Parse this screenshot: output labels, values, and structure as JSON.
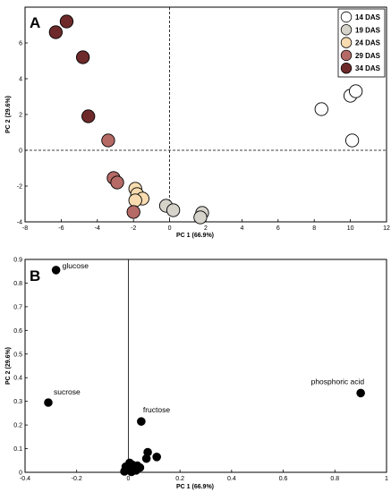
{
  "chart_data": [
    {
      "type": "scatter",
      "panel_label": "A",
      "xlabel": "PC 1 (66.9%)",
      "ylabel": "PC 2 (29.6%)",
      "xlim": [
        -8,
        12
      ],
      "ylim": [
        -4,
        8
      ],
      "xticks": [
        -8,
        -6,
        -4,
        -2,
        0,
        2,
        4,
        6,
        8,
        10,
        12
      ],
      "yticks": [
        -4,
        -2,
        0,
        2,
        4,
        6
      ],
      "reference_lines": {
        "x": 0,
        "y": 0,
        "style": "dashed"
      },
      "legend": {
        "position": "top-right"
      },
      "series": [
        {
          "name": "14 DAS",
          "color": "#ffffff",
          "points": [
            [
              8.4,
              2.3
            ],
            [
              10.0,
              3.05
            ],
            [
              10.3,
              3.3
            ],
            [
              10.1,
              0.55
            ]
          ]
        },
        {
          "name": "19 DAS",
          "color": "#d6d3cb",
          "points": [
            [
              -0.2,
              -3.1
            ],
            [
              0.2,
              -3.35
            ],
            [
              1.8,
              -3.5
            ],
            [
              1.7,
              -3.75
            ]
          ]
        },
        {
          "name": "24 DAS",
          "color": "#f8dcb0",
          "points": [
            [
              -1.9,
              -2.15
            ],
            [
              -1.8,
              -2.45
            ],
            [
              -1.5,
              -2.7
            ],
            [
              -1.9,
              -2.8
            ]
          ]
        },
        {
          "name": "29 DAS",
          "color": "#b56a66",
          "points": [
            [
              -3.4,
              0.55
            ],
            [
              -3.1,
              -1.55
            ],
            [
              -2.9,
              -1.8
            ],
            [
              -2.0,
              -3.45
            ]
          ]
        },
        {
          "name": "34 DAS",
          "color": "#6e2a2a",
          "points": [
            [
              -6.3,
              6.6
            ],
            [
              -5.7,
              7.2
            ],
            [
              -4.8,
              5.2
            ],
            [
              -4.5,
              1.9
            ]
          ]
        }
      ]
    },
    {
      "type": "scatter",
      "panel_label": "B",
      "xlabel": "PC 1 (66.9%)",
      "ylabel": "PC 2 (29.6%)",
      "xlim": [
        -0.4,
        1.0
      ],
      "ylim": [
        0,
        0.9
      ],
      "xticks": [
        -0.4,
        -0.2,
        0,
        0.2,
        0.4,
        0.6,
        0.8,
        1
      ],
      "yticks": [
        0,
        0.1,
        0.2,
        0.3,
        0.4,
        0.5,
        0.6,
        0.7,
        0.8,
        0.9
      ],
      "reference_lines": {
        "x": 0,
        "style": "solid"
      },
      "color": "#000000",
      "points": [
        {
          "x": -0.28,
          "y": 0.855,
          "label": "glucose"
        },
        {
          "x": -0.31,
          "y": 0.295,
          "label": "sucrose"
        },
        {
          "x": 0.05,
          "y": 0.215,
          "label": "fructose"
        },
        {
          "x": 0.9,
          "y": 0.335,
          "label": "phosphoric acid"
        },
        {
          "x": 0.075,
          "y": 0.085,
          "label": ""
        },
        {
          "x": 0.11,
          "y": 0.065,
          "label": ""
        },
        {
          "x": 0.07,
          "y": 0.058,
          "label": ""
        },
        {
          "x": 0.005,
          "y": 0.04,
          "label": ""
        },
        {
          "x": 0.015,
          "y": 0.032,
          "label": ""
        },
        {
          "x": 0.035,
          "y": 0.028,
          "label": ""
        },
        {
          "x": -0.01,
          "y": 0.024,
          "label": ""
        },
        {
          "x": 0.045,
          "y": 0.02,
          "label": ""
        },
        {
          "x": 0.02,
          "y": 0.016,
          "label": ""
        },
        {
          "x": -0.005,
          "y": 0.01,
          "label": ""
        },
        {
          "x": 0.03,
          "y": 0.008,
          "label": ""
        },
        {
          "x": -0.015,
          "y": 0.004,
          "label": ""
        },
        {
          "x": 0.012,
          "y": 0.002,
          "label": ""
        }
      ]
    }
  ]
}
